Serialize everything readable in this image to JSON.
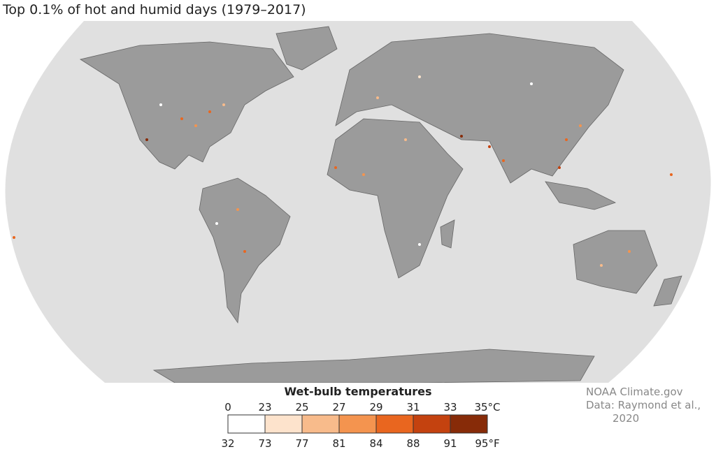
{
  "title": "Top 0.1% of hot and humid days (1979–2017)",
  "legend": {
    "title": "Wet-bulb temperatures",
    "celsius": [
      "0",
      "23",
      "25",
      "27",
      "29",
      "31",
      "33",
      "35°C"
    ],
    "fahrenheit": [
      "32",
      "73",
      "77",
      "81",
      "84",
      "88",
      "91",
      "95°F"
    ],
    "colors": [
      "#ffffff",
      "#fde3cc",
      "#f8bb8b",
      "#f4944f",
      "#e9661f",
      "#c4420f",
      "#872b08"
    ]
  },
  "credit": [
    "NOAA Climate.gov",
    "Data: Raymond et al.,",
    "2020"
  ]
}
